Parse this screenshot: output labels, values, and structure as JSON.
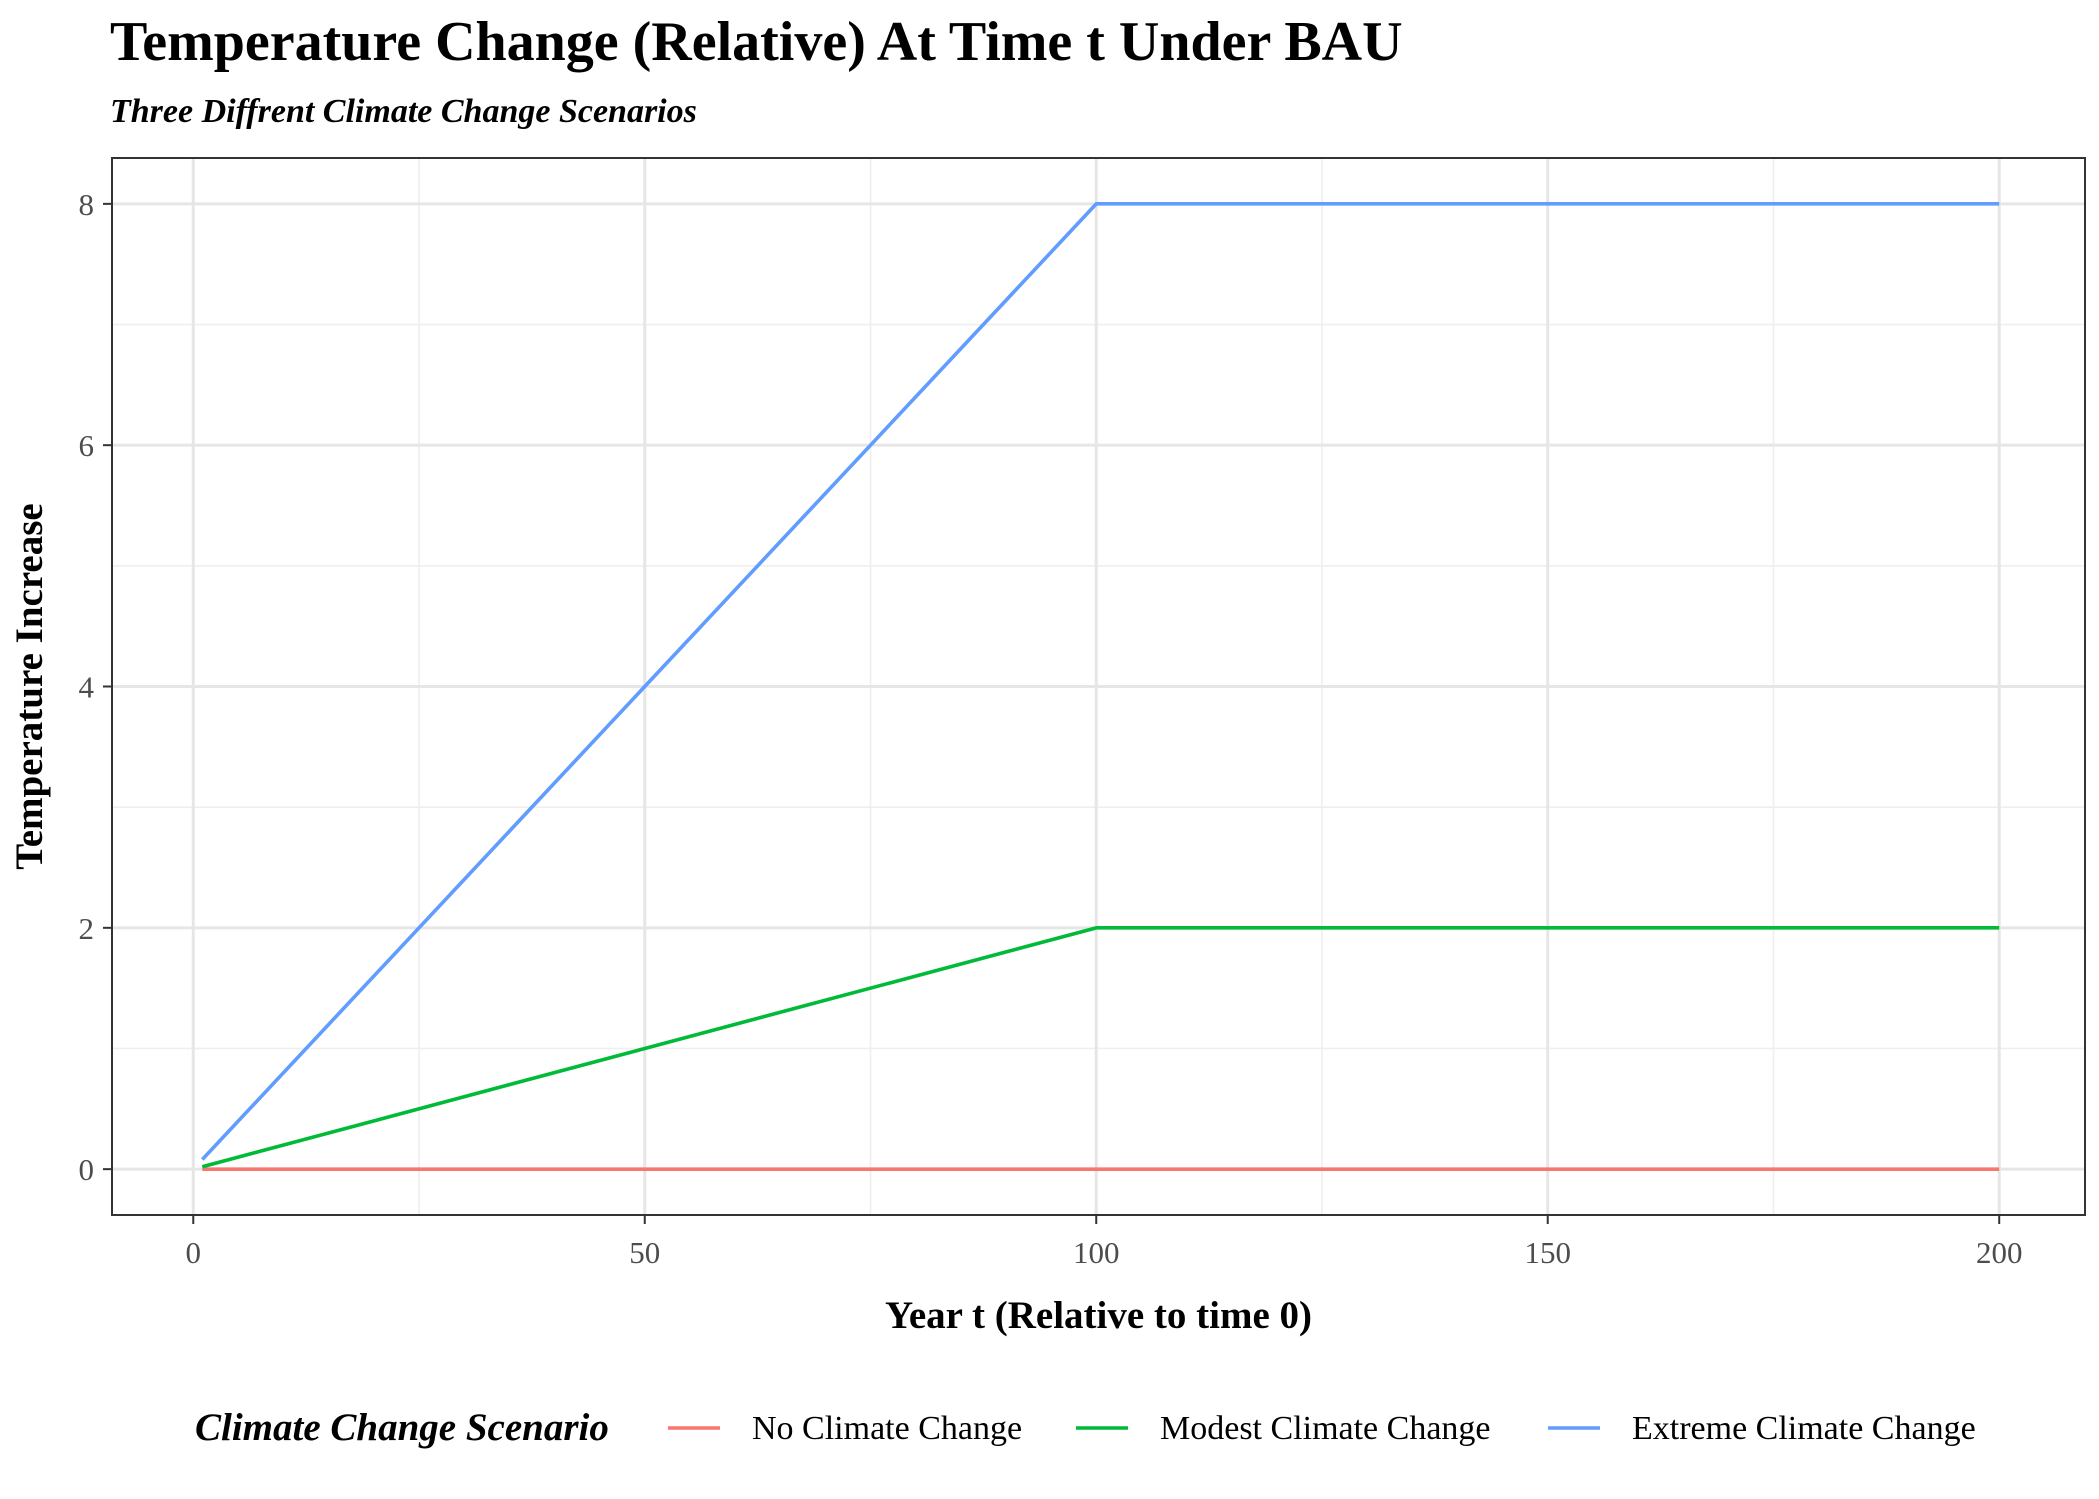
{
  "chart_data": {
    "type": "line",
    "title": "Temperature Change (Relative) At Time t Under BAU",
    "subtitle": "Three Diffrent Climate Change Scenarios",
    "xlabel": "Year t (Relative to time 0)",
    "ylabel": "Temperature Increase",
    "xlim": [
      -9,
      209.5
    ],
    "ylim": [
      -0.38,
      8.38
    ],
    "x_ticks": [
      0,
      50,
      100,
      150,
      200
    ],
    "y_ticks": [
      0,
      2,
      4,
      6,
      8
    ],
    "x_minor": [
      25,
      75,
      125,
      175
    ],
    "y_minor": [
      1,
      3,
      5,
      7
    ],
    "grid": true,
    "legend": {
      "title": "Climate Change Scenario",
      "position": "bottom"
    },
    "series": [
      {
        "name": "No Climate Change",
        "color": "#F8766D",
        "x": [
          1,
          100,
          200
        ],
        "y": [
          0,
          0,
          0
        ]
      },
      {
        "name": "Modest Climate Change",
        "color": "#00BA38",
        "x": [
          1,
          100,
          200
        ],
        "y": [
          0.02,
          2,
          2
        ]
      },
      {
        "name": "Extreme Climate Change",
        "color": "#619CFF",
        "x": [
          1,
          100,
          200
        ],
        "y": [
          0.08,
          8,
          8
        ]
      }
    ]
  }
}
